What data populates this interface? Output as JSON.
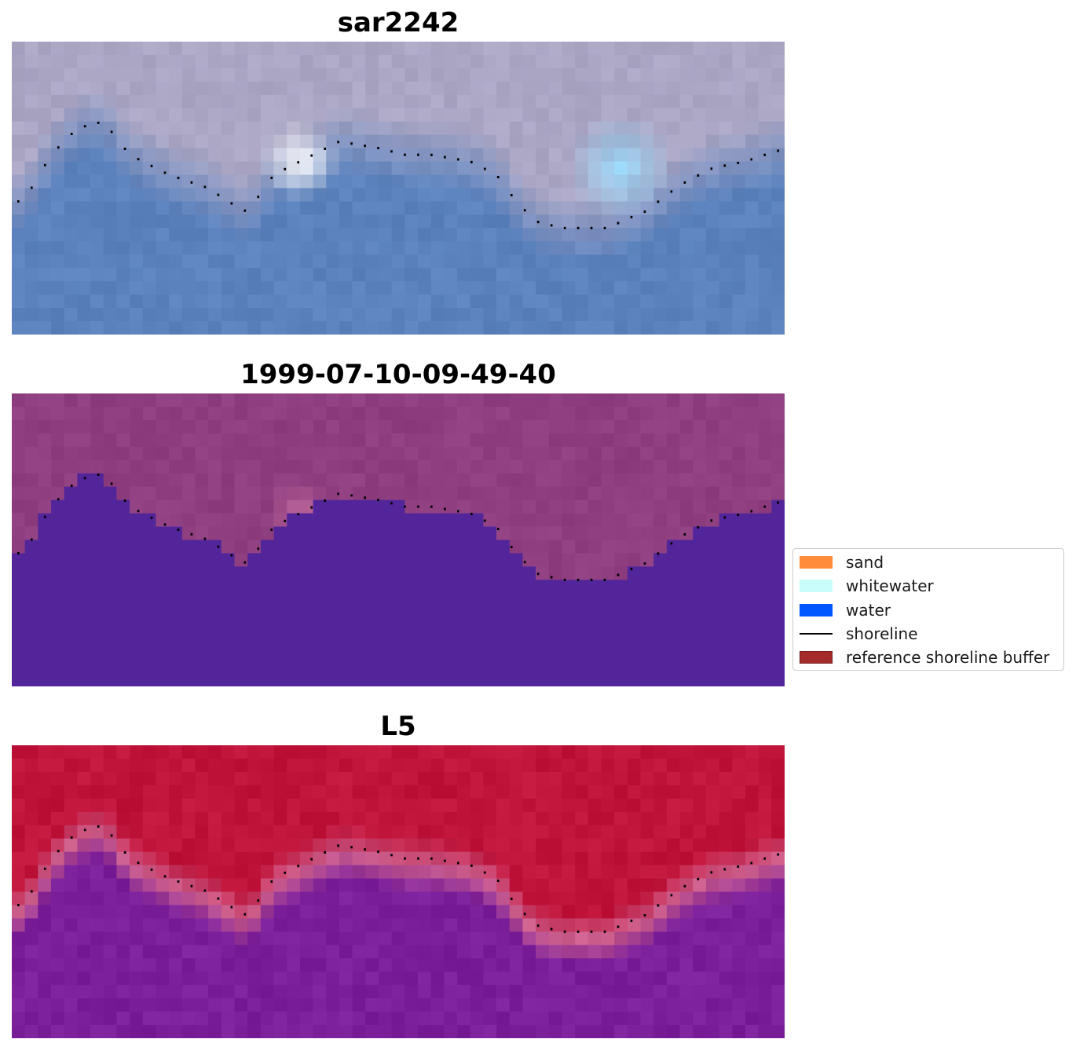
{
  "chart_data": [
    {
      "type": "heatmap",
      "title": "sar2242",
      "colors": {
        "land_top": "#aaa6c4",
        "water": "#5b82bd",
        "bright_spot": "#ffffff",
        "wave_spot": "#9ad6f5"
      }
    },
    {
      "type": "heatmap",
      "title": "1999-07-10-09-49-40",
      "colors": {
        "land": "#8f3f80",
        "water": "#52259a",
        "bright_spot": "#c0679c"
      }
    },
    {
      "type": "heatmap",
      "title": "L5",
      "colors": {
        "land": "#c0143a",
        "water": "#7b1f9b",
        "transition": "#cc5e8b"
      }
    }
  ],
  "shoreline_profile": [
    [
      0.5,
      1.0
    ],
    [
      1.5,
      2.0
    ],
    [
      3.0,
      4.5
    ],
    [
      5.0,
      6.5
    ],
    [
      7.0,
      7.0
    ],
    [
      9.0,
      4.5
    ],
    [
      12.0,
      3.0
    ],
    [
      15.0,
      2.0
    ],
    [
      16.5,
      1.0
    ],
    [
      18.0,
      0.2
    ],
    [
      20.0,
      3.0
    ],
    [
      22.0,
      4.0
    ],
    [
      25.0,
      5.5
    ],
    [
      28.0,
      5.0
    ],
    [
      30.0,
      4.5
    ],
    [
      32.0,
      4.5
    ],
    [
      35.0,
      4.0
    ],
    [
      37.0,
      3.0
    ],
    [
      38.5,
      1.0
    ],
    [
      40.0,
      -0.5
    ],
    [
      42.0,
      -1.0
    ],
    [
      45.5,
      -1.0
    ],
    [
      47.0,
      -0.3
    ],
    [
      48.5,
      0.3
    ],
    [
      50.0,
      1.5
    ],
    [
      51.5,
      2.5
    ],
    [
      53.5,
      3.5
    ],
    [
      56.0,
      4.0
    ],
    [
      57.5,
      4.5
    ],
    [
      58.5,
      4.8
    ]
  ],
  "legend": {
    "items": [
      {
        "label": "sand",
        "color": "#ff8c3a",
        "kind": "patch"
      },
      {
        "label": "whitewater",
        "color": "#c9fdfc",
        "kind": "patch"
      },
      {
        "label": "water",
        "color": "#0057ff",
        "kind": "patch"
      },
      {
        "label": "shoreline",
        "color": "#000000",
        "kind": "line"
      },
      {
        "label": "reference shoreline buffer",
        "color": "#a52a2a",
        "kind": "patch"
      }
    ]
  }
}
